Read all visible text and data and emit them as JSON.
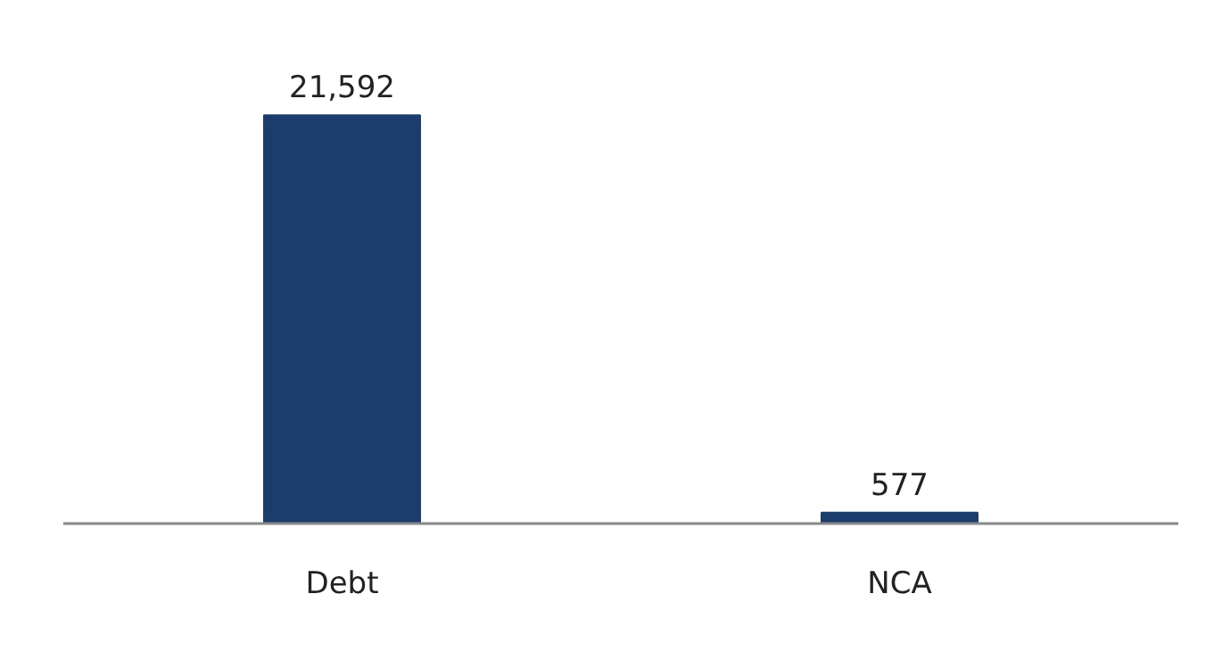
{
  "chart_data": {
    "type": "bar",
    "categories": [
      "Debt",
      "NCA"
    ],
    "values": [
      21592,
      577
    ],
    "value_labels": [
      "21,592",
      "577"
    ],
    "color": "#1b3d6e",
    "grid": false
  }
}
